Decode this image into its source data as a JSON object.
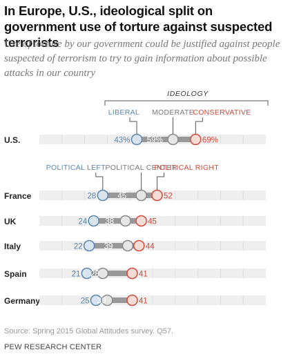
{
  "title": "In Europe, U.S., ideological split on government use of torture against suspected terrorists",
  "subtitle": "Use of torture by our government could be justified against people suspected of terrorism to try to gain information about possible attacks in our country",
  "source": "Source: Spring 2015 Global Attitudes survey. Q57.",
  "organization": "PEW RESEARCH CENTER",
  "colors": {
    "left": "#5b86ad",
    "center": "#999999",
    "right": "#cf4a3a",
    "left_fill": "#dae4ee",
    "center_fill": "#e6e6e6",
    "right_fill": "#f6dcd7",
    "range_bar": "#999999",
    "band": "#efefef"
  },
  "chart_data": {
    "type": "dot-range",
    "xlim": [
      0,
      100
    ],
    "us_group": {
      "heading": "IDEOLOGY",
      "legend": [
        "LIBERAL",
        "MODERATE",
        "CONSERVATIVE"
      ],
      "rows": [
        {
          "label": "U.S.",
          "left": 43,
          "center": 59,
          "right": 69,
          "left_text": "43%",
          "center_text": "59%",
          "right_text": "69%"
        }
      ]
    },
    "europe_group": {
      "legend": [
        "POLITICAL LEFT",
        "POLITICAL CENTER",
        "POLITICAL RIGHT"
      ],
      "rows": [
        {
          "label": "France",
          "left": 28,
          "center": 45,
          "right": 52,
          "left_text": "28",
          "center_text": "45",
          "right_text": "52"
        },
        {
          "label": "UK",
          "left": 24,
          "center": 38,
          "right": 45,
          "left_text": "24",
          "center_text": "38",
          "right_text": "45"
        },
        {
          "label": "Italy",
          "left": 22,
          "center": 39,
          "right": 44,
          "left_text": "22",
          "center_text": "39",
          "right_text": "44"
        },
        {
          "label": "Spain",
          "left": 21,
          "center": 28,
          "right": 41,
          "left_text": "21",
          "center_text": "28",
          "right_text": "41"
        },
        {
          "label": "Germany",
          "left": 25,
          "center": 30,
          "right": 41,
          "left_text": "25",
          "center_text": "30",
          "right_text": "41"
        }
      ]
    }
  }
}
